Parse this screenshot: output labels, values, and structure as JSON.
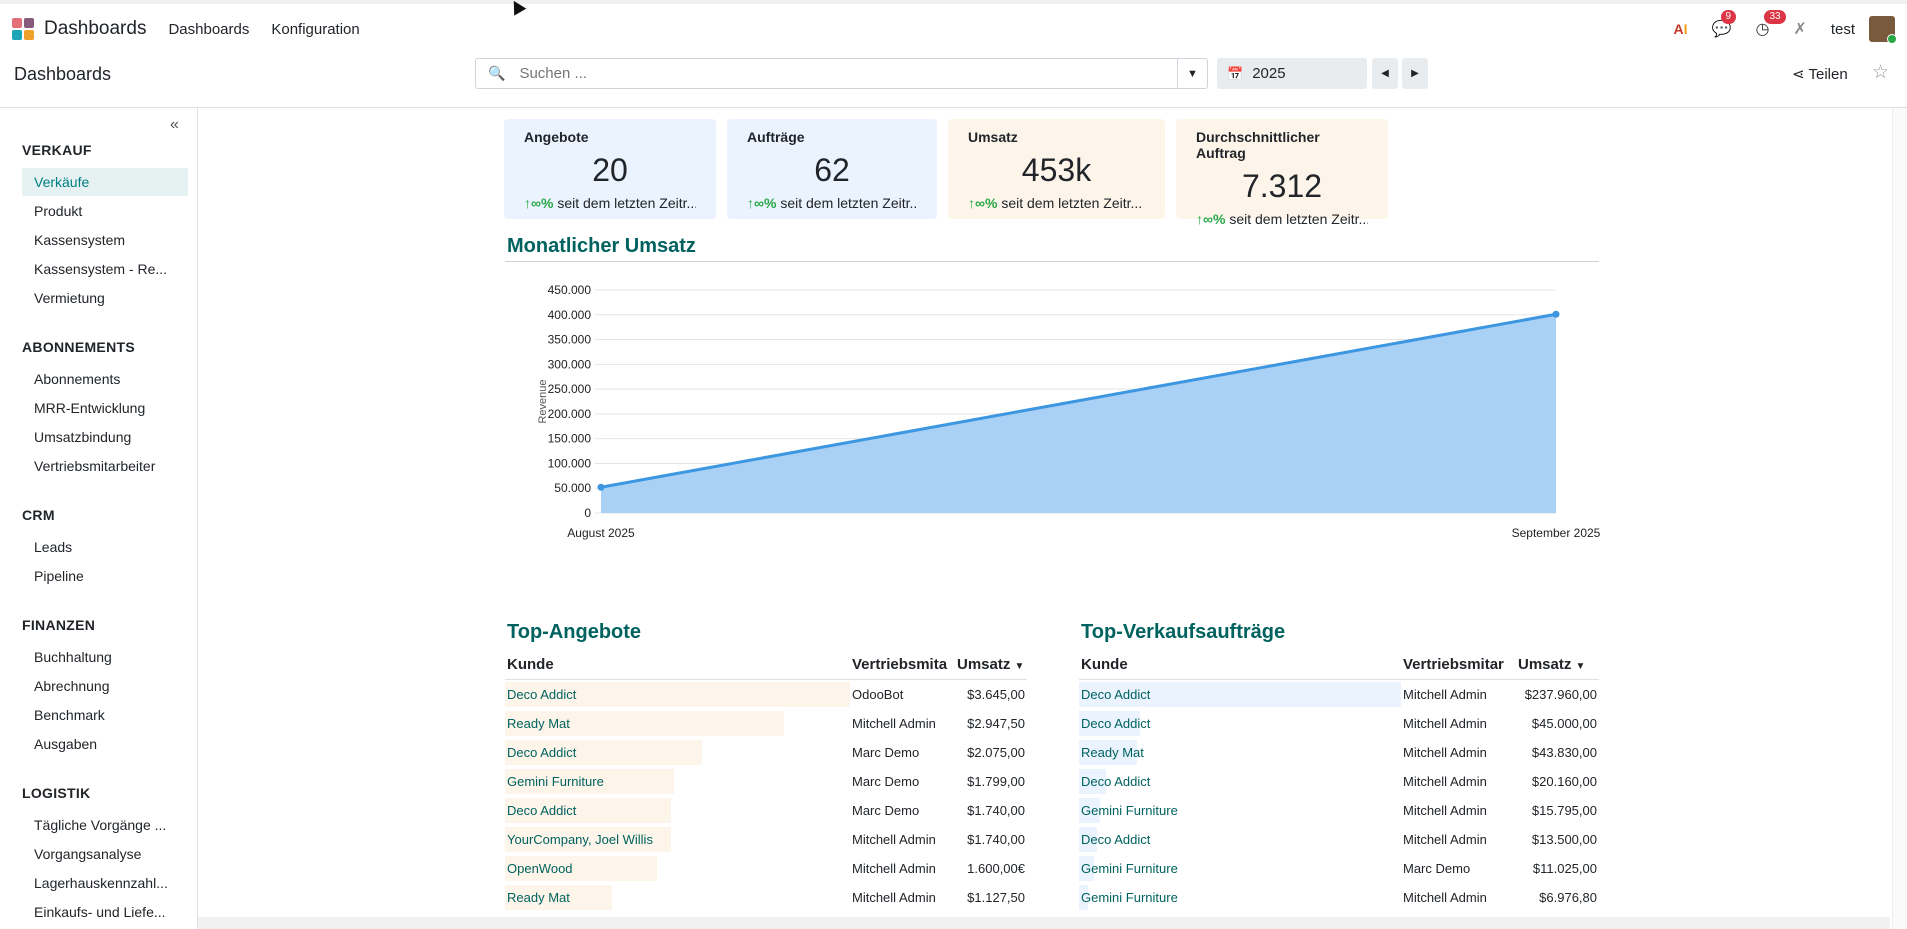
{
  "topbar": {
    "app_name": "Dashboards",
    "menus": [
      "Dashboards",
      "Konfiguration"
    ],
    "messages_badge": "9",
    "activities_badge": "33",
    "username": "test"
  },
  "control": {
    "breadcrumb": "Dashboards",
    "search_placeholder": "Suchen ...",
    "year": "2025",
    "share_label": "Teilen"
  },
  "sidebar": {
    "sections": [
      {
        "title": "VERKAUF",
        "items": [
          "Verkäufe",
          "Produkt",
          "Kassensystem",
          "Kassensystem - Re...",
          "Vermietung"
        ]
      },
      {
        "title": "ABONNEMENTS",
        "items": [
          "Abonnements",
          "MRR-Entwicklung",
          "Umsatzbindung",
          "Vertriebsmitarbeiter"
        ]
      },
      {
        "title": "CRM",
        "items": [
          "Leads",
          "Pipeline"
        ]
      },
      {
        "title": "FINANZEN",
        "items": [
          "Buchhaltung",
          "Abrechnung",
          "Benchmark",
          "Ausgaben"
        ]
      },
      {
        "title": "LOGISTIK",
        "items": [
          "Tägliche Vorgänge ...",
          "Vorgangsanalyse",
          "Lagerhauskennzahl...",
          "Einkaufs- und Liefe..."
        ]
      }
    ],
    "active": "Verkäufe"
  },
  "kpis": [
    {
      "name": "Angebote",
      "value": "20",
      "trend": "∞%",
      "trend_text": " seit dem letzten Zeitr..."
    },
    {
      "name": "Aufträge",
      "value": "62",
      "trend": "∞%",
      "trend_text": " seit dem letzten Zeitr..."
    },
    {
      "name": "Umsatz",
      "value": "453k",
      "trend": "∞%",
      "trend_text": " seit dem letzten Zeitr..."
    },
    {
      "name": "Durchschnittlicher Auftrag",
      "value": "7.312",
      "trend": "∞%",
      "trend_text": " seit dem letzten Zeitr..."
    }
  ],
  "chart_section_title": "Monatlicher Umsatz",
  "chart_data": {
    "type": "area",
    "categories": [
      "August 2025",
      "September 2025"
    ],
    "values": [
      52000,
      401000
    ],
    "ylabel": "Revenue",
    "ylim": [
      0,
      450000
    ],
    "yticks": [
      "0",
      "50.000",
      "100.000",
      "150.000",
      "200.000",
      "250.000",
      "300.000",
      "350.000",
      "400.000",
      "450.000"
    ],
    "grid": true,
    "color": "#3c96e0",
    "fill": "#a9d0f5"
  },
  "top_quotes": {
    "title": "Top-Angebote",
    "headers": [
      "Kunde",
      "Vertriebsmita",
      "Umsatz"
    ],
    "rows": [
      {
        "customer": "Deco Addict",
        "salesperson": "OdooBot",
        "amount": "$3.645,00",
        "share": 1.0
      },
      {
        "customer": "Ready Mat",
        "salesperson": "Mitchell Admin",
        "amount": "$2.947,50",
        "share": 0.81
      },
      {
        "customer": "Deco Addict",
        "salesperson": "Marc Demo",
        "amount": "$2.075,00",
        "share": 0.57
      },
      {
        "customer": "Gemini Furniture",
        "salesperson": "Marc Demo",
        "amount": "$1.799,00",
        "share": 0.49
      },
      {
        "customer": "Deco Addict",
        "salesperson": "Marc Demo",
        "amount": "$1.740,00",
        "share": 0.48
      },
      {
        "customer": "YourCompany, Joel Willis",
        "salesperson": "Mitchell Admin",
        "amount": "$1.740,00",
        "share": 0.48
      },
      {
        "customer": "OpenWood",
        "salesperson": "Mitchell Admin",
        "amount": "1.600,00€",
        "share": 0.44
      },
      {
        "customer": "Ready Mat",
        "salesperson": "Mitchell Admin",
        "amount": "$1.127,50",
        "share": 0.31
      }
    ]
  },
  "top_orders": {
    "title": "Top-Verkaufsaufträge",
    "headers": [
      "Kunde",
      "Vertriebsmitar",
      "Umsatz"
    ],
    "rows": [
      {
        "customer": "Deco Addict",
        "salesperson": "Mitchell Admin",
        "amount": "$237.960,00",
        "share": 1.0
      },
      {
        "customer": "Deco Addict",
        "salesperson": "Mitchell Admin",
        "amount": "$45.000,00",
        "share": 0.19
      },
      {
        "customer": "Ready Mat",
        "salesperson": "Mitchell Admin",
        "amount": "$43.830,00",
        "share": 0.18
      },
      {
        "customer": "Deco Addict",
        "salesperson": "Mitchell Admin",
        "amount": "$20.160,00",
        "share": 0.085
      },
      {
        "customer": "Gemini Furniture",
        "salesperson": "Mitchell Admin",
        "amount": "$15.795,00",
        "share": 0.066
      },
      {
        "customer": "Deco Addict",
        "salesperson": "Mitchell Admin",
        "amount": "$13.500,00",
        "share": 0.057
      },
      {
        "customer": "Gemini Furniture",
        "salesperson": "Marc Demo",
        "amount": "$11.025,00",
        "share": 0.046
      },
      {
        "customer": "Gemini Furniture",
        "salesperson": "Mitchell Admin",
        "amount": "$6.976,80",
        "share": 0.029
      }
    ]
  },
  "colors": {
    "accent": "#017e84",
    "heading": "#00625f",
    "blue_card": "#eaf3fe",
    "orange_card": "#fdf5ea",
    "trend_up": "#28a745"
  }
}
